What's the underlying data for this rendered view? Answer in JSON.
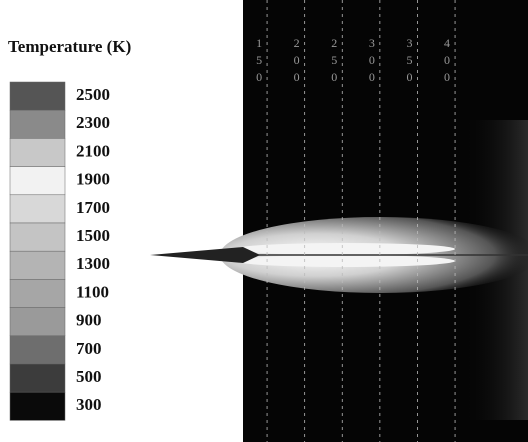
{
  "chart_data": {
    "type": "contour",
    "colorbar_title": "Temperature (K)",
    "colorbar_ticks": [
      2500,
      2300,
      2100,
      1900,
      1700,
      1500,
      1300,
      1100,
      900,
      700,
      500,
      300
    ],
    "colorbar_colors": [
      "#555555",
      "#8a8a8a",
      "#c8c8c8",
      "#f2f2f2",
      "#d8d8d8",
      "#c4c4c4",
      "#b4b4b4",
      "#a6a6a6",
      "#9a9a9a",
      "#6e6e6e",
      "#3c3c3c",
      "#0a0a0a"
    ],
    "xlim": [
      118,
      497
    ],
    "xticks": [
      150,
      200,
      250,
      300,
      350,
      400
    ]
  }
}
